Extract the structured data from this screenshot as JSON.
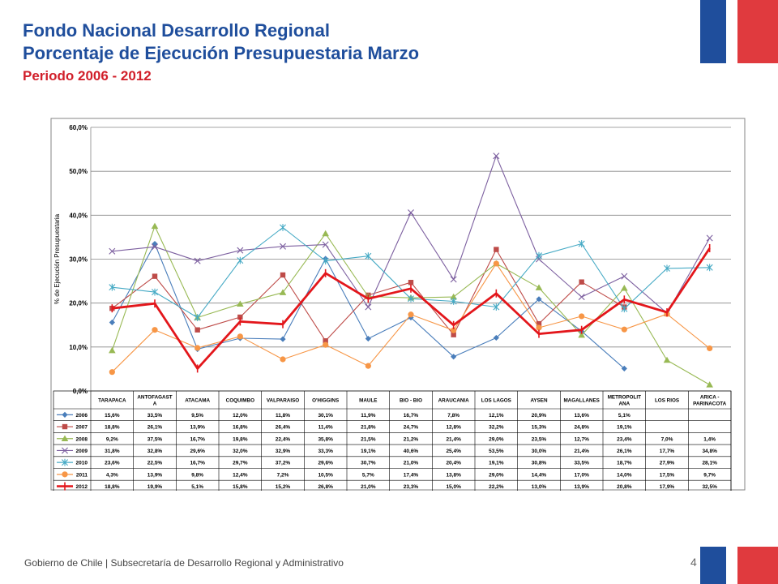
{
  "page": {
    "title_line1": "Fondo Nacional Desarrollo Regional",
    "title_line2": "Porcentaje de Ejecución Presupuestaria Marzo",
    "subtitle": "Periodo 2006 - 2012",
    "footer": "Gobierno de Chile | Subsecretaría de Desarrollo Regional y Administrativo",
    "page_number": "4",
    "colors": {
      "title": "#1f4e9c",
      "subtitle": "#d11f2a",
      "flag_blue": "#1f4e9c",
      "flag_red": "#e03a3e"
    }
  },
  "chart_data": {
    "type": "line",
    "ylabel": "% de Ejecución Presupuestaria",
    "ylim": [
      0,
      60
    ],
    "yticks": [
      "0,0%",
      "10,0%",
      "20,0%",
      "30,0%",
      "40,0%",
      "50,0%",
      "60,0%"
    ],
    "grid": true,
    "legend": "data-table",
    "categories": [
      "TARAPACA",
      "ANTOFAGASTA",
      "ATACAMA",
      "COQUIMBO",
      "VALPARAISO",
      "O'HIGGINS",
      "MAULE",
      "BIO - BIO",
      "ARAUCANIA",
      "LOS LAGOS",
      "AYSEN",
      "MAGALLANES",
      "METROPOLITANA",
      "LOS RIOS",
      "ARICA - PARINACOTA"
    ],
    "category_labels": [
      [
        "TARAPACA"
      ],
      [
        "ANTOFAGAST",
        "A"
      ],
      [
        "ATACAMA"
      ],
      [
        "COQUIMBO"
      ],
      [
        "VALPARAISO"
      ],
      [
        "O'HIGGINS"
      ],
      [
        "MAULE"
      ],
      [
        "BIO - BIO"
      ],
      [
        "ARAUCANIA"
      ],
      [
        "LOS LAGOS"
      ],
      [
        "AYSEN"
      ],
      [
        "MAGALLANES"
      ],
      [
        "METROPOLIT",
        "ANA"
      ],
      [
        "LOS RIOS"
      ],
      [
        "ARICA -",
        "PARINACOTA"
      ]
    ],
    "series": [
      {
        "name": "2006",
        "color": "#4a7ebb",
        "marker": "diamond",
        "values": [
          15.6,
          33.5,
          9.5,
          12.0,
          11.8,
          30.1,
          11.9,
          16.7,
          7.8,
          12.1,
          20.9,
          13.6,
          5.1,
          null,
          null
        ],
        "labels": [
          "15,6%",
          "33,5%",
          "9,5%",
          "12,0%",
          "11,8%",
          "30,1%",
          "11,9%",
          "16,7%",
          "7,8%",
          "12,1%",
          "20,9%",
          "13,6%",
          "5,1%",
          "",
          ""
        ]
      },
      {
        "name": "2007",
        "color": "#be4b48",
        "marker": "square",
        "values": [
          18.8,
          26.1,
          13.9,
          16.8,
          26.4,
          11.4,
          21.8,
          24.7,
          12.8,
          32.2,
          15.3,
          24.8,
          19.1,
          null,
          null
        ],
        "labels": [
          "18,8%",
          "26,1%",
          "13,9%",
          "16,8%",
          "26,4%",
          "11,4%",
          "21,8%",
          "24,7%",
          "12,8%",
          "32,2%",
          "15,3%",
          "24,8%",
          "19,1%",
          "",
          ""
        ]
      },
      {
        "name": "2008",
        "color": "#98b954",
        "marker": "triangle",
        "values": [
          9.2,
          37.5,
          16.7,
          19.8,
          22.4,
          35.8,
          21.5,
          21.2,
          21.4,
          29.0,
          23.5,
          12.7,
          23.4,
          7.0,
          1.4
        ],
        "labels": [
          "9,2%",
          "37,5%",
          "16,7%",
          "19,8%",
          "22,4%",
          "35,8%",
          "21,5%",
          "21,2%",
          "21,4%",
          "29,0%",
          "23,5%",
          "12,7%",
          "23,4%",
          "7,0%",
          "1,4%"
        ]
      },
      {
        "name": "2009",
        "color": "#7d60a0",
        "marker": "x",
        "values": [
          31.8,
          32.8,
          29.6,
          32.0,
          32.9,
          33.3,
          19.1,
          40.6,
          25.4,
          53.5,
          30.0,
          21.4,
          26.1,
          17.7,
          34.8
        ],
        "labels": [
          "31,8%",
          "32,8%",
          "29,6%",
          "32,0%",
          "32,9%",
          "33,3%",
          "19,1%",
          "40,6%",
          "25,4%",
          "53,5%",
          "30,0%",
          "21,4%",
          "26,1%",
          "17,7%",
          "34,8%"
        ]
      },
      {
        "name": "2010",
        "color": "#46aac5",
        "marker": "star",
        "values": [
          23.6,
          22.5,
          16.7,
          29.7,
          37.2,
          29.6,
          30.7,
          21.0,
          20.4,
          19.1,
          30.8,
          33.5,
          18.7,
          27.9,
          28.1
        ],
        "labels": [
          "23,6%",
          "22,5%",
          "16,7%",
          "29,7%",
          "37,2%",
          "29,6%",
          "30,7%",
          "21,0%",
          "20,4%",
          "19,1%",
          "30,8%",
          "33,5%",
          "18,7%",
          "27,9%",
          "28,1%"
        ]
      },
      {
        "name": "2011",
        "color": "#f79646",
        "marker": "circle",
        "values": [
          4.3,
          13.9,
          9.8,
          12.4,
          7.2,
          10.5,
          5.7,
          17.4,
          13.8,
          29.0,
          14.4,
          17.0,
          14.0,
          17.5,
          9.7
        ],
        "labels": [
          "4,3%",
          "13,9%",
          "9,8%",
          "12,4%",
          "7,2%",
          "10,5%",
          "5,7%",
          "17,4%",
          "13,8%",
          "29,0%",
          "14,4%",
          "17,0%",
          "14,0%",
          "17,5%",
          "9,7%"
        ]
      },
      {
        "name": "2012",
        "color": "#e3161b",
        "marker": "plus",
        "values": [
          18.8,
          19.9,
          5.1,
          15.8,
          15.2,
          26.8,
          21.0,
          23.3,
          15.0,
          22.2,
          13.0,
          13.9,
          20.8,
          17.9,
          32.5
        ],
        "labels": [
          "18,8%",
          "19,9%",
          "5,1%",
          "15,8%",
          "15,2%",
          "26,8%",
          "21,0%",
          "23,3%",
          "15,0%",
          "22,2%",
          "13,0%",
          "13,9%",
          "20,8%",
          "17,9%",
          "32,5%"
        ]
      }
    ]
  }
}
